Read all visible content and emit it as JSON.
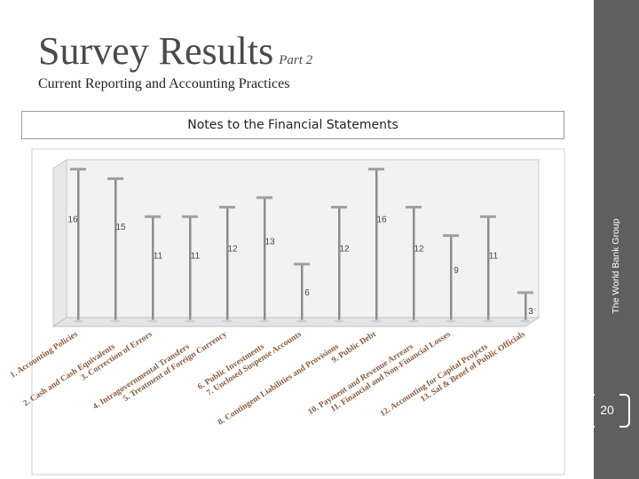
{
  "slide": {
    "title": "Survey Results",
    "title_part": "Part 2",
    "subtitle": "Current Reporting and Accounting Practices",
    "side_label": "The World Bank Group",
    "page_number": "20"
  },
  "chart_data": {
    "type": "bar",
    "title": "Notes to the Financial Statements",
    "categories": [
      "1. Accounting Policies",
      "2. Cash and Cash Equivalents",
      "3. Correction of Errors",
      "4. Intragovernmental Transfers",
      "5. Treatment of Foreign Currency",
      "6. Public Investments",
      "7. Unclosed Suspense Accounts",
      "8. Contingent Liabilities and Provisions",
      "9. Public Debt",
      "10. Payment and Revenue Arrears",
      "11. Financial and Non-Financial Losses",
      "12. Accounting for Capital Projects",
      "13. Sal & Benef of Public Officials"
    ],
    "values": [
      16,
      15,
      11,
      11,
      12,
      13,
      6,
      12,
      16,
      12,
      9,
      11,
      3
    ],
    "ylim": [
      0,
      17
    ],
    "grid": false,
    "legend": "none"
  }
}
